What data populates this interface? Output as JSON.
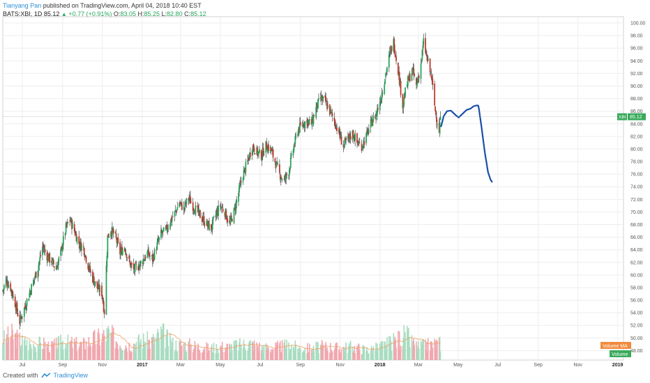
{
  "header": {
    "author": "Tianyang Pan",
    "published": "published on TradingView.com, April 04, 2018 10:40 EST",
    "symbol": "BATS:XBI, 1D",
    "price": "85.12",
    "change": "+0.77 (+0.91%)",
    "o_label": "O:",
    "o": "83.05",
    "h_label": "H:",
    "h": "85.25",
    "l_label": "L:",
    "l": "82.80",
    "c_label": "C:",
    "c": "85.12"
  },
  "footer": {
    "created": "Created with",
    "brand": "TradingView"
  },
  "colors": {
    "up": "#26a65b",
    "down": "#c0392b",
    "wick": "#444444",
    "forecast": "#1a4fa8",
    "volume_up": "#a8dcc0",
    "volume_down": "#f1a7ae",
    "volume_ma": "#f0a060",
    "grid": "#eeeeee"
  },
  "chart_data": {
    "type": "candlestick",
    "symbol": "XBI",
    "ylim": [
      46.5,
      101
    ],
    "y_ticks": [
      "100.00",
      "98.00",
      "96.00",
      "94.00",
      "92.00",
      "90.00",
      "88.00",
      "86.00",
      "84.00",
      "82.00",
      "80.00",
      "78.00",
      "76.00",
      "74.00",
      "72.00",
      "70.00",
      "68.00",
      "66.00",
      "64.00",
      "62.00",
      "60.00",
      "58.00",
      "56.00",
      "54.00",
      "52.00",
      "50.00",
      "48.00"
    ],
    "x_ticks": [
      "Jul",
      "Sep",
      "Nov",
      "2017",
      "Mar",
      "May",
      "Jul",
      "Sep",
      "Nov",
      "2018",
      "Mar",
      "May",
      "Jul",
      "Sep",
      "Nov",
      "2019"
    ],
    "x_tick_dates": [
      "2016-07-01",
      "2016-09-01",
      "2016-11-01",
      "2017-01-01",
      "2017-03-01",
      "2017-05-01",
      "2017-07-01",
      "2017-09-01",
      "2017-11-01",
      "2018-01-01",
      "2018-03-01",
      "2018-05-01",
      "2018-07-01",
      "2018-09-01",
      "2018-11-01",
      "2019-01-01"
    ],
    "x_range": [
      "2016-06-01",
      "2019-01-10"
    ],
    "last_price_label": "XBI",
    "last_price": 85.12,
    "price_path": [
      [
        "2016-06-01",
        57.5
      ],
      [
        "2016-06-06",
        59.2
      ],
      [
        "2016-06-13",
        58.0
      ],
      [
        "2016-06-20",
        55.5
      ],
      [
        "2016-06-27",
        52.6
      ],
      [
        "2016-07-05",
        55.0
      ],
      [
        "2016-07-11",
        56.8
      ],
      [
        "2016-07-18",
        59.0
      ],
      [
        "2016-07-25",
        61.2
      ],
      [
        "2016-08-01",
        64.5
      ],
      [
        "2016-08-08",
        63.0
      ],
      [
        "2016-08-15",
        62.2
      ],
      [
        "2016-08-22",
        61.0
      ],
      [
        "2016-08-29",
        63.5
      ],
      [
        "2016-09-06",
        67.5
      ],
      [
        "2016-09-12",
        68.8
      ],
      [
        "2016-09-19",
        67.0
      ],
      [
        "2016-09-26",
        65.0
      ],
      [
        "2016-10-03",
        64.3
      ],
      [
        "2016-10-10",
        61.5
      ],
      [
        "2016-10-17",
        59.5
      ],
      [
        "2016-10-24",
        58.0
      ],
      [
        "2016-10-31",
        57.2
      ],
      [
        "2016-11-04",
        54.2
      ],
      [
        "2016-11-09",
        66.0
      ],
      [
        "2016-11-14",
        67.3
      ],
      [
        "2016-11-21",
        66.0
      ],
      [
        "2016-11-28",
        63.5
      ],
      [
        "2016-12-05",
        64.5
      ],
      [
        "2016-12-12",
        62.0
      ],
      [
        "2016-12-19",
        60.8
      ],
      [
        "2016-12-27",
        61.5
      ],
      [
        "2017-01-03",
        62.5
      ],
      [
        "2017-01-09",
        63.5
      ],
      [
        "2017-01-17",
        62.5
      ],
      [
        "2017-01-23",
        64.5
      ],
      [
        "2017-01-30",
        66.5
      ],
      [
        "2017-02-06",
        67.0
      ],
      [
        "2017-02-13",
        68.5
      ],
      [
        "2017-02-21",
        70.0
      ],
      [
        "2017-02-27",
        71.5
      ],
      [
        "2017-03-06",
        70.5
      ],
      [
        "2017-03-13",
        72.3
      ],
      [
        "2017-03-20",
        71.0
      ],
      [
        "2017-03-27",
        70.0
      ],
      [
        "2017-04-03",
        69.0
      ],
      [
        "2017-04-10",
        68.0
      ],
      [
        "2017-04-17",
        67.5
      ],
      [
        "2017-04-24",
        69.5
      ],
      [
        "2017-05-01",
        71.0
      ],
      [
        "2017-05-08",
        70.0
      ],
      [
        "2017-05-15",
        68.0
      ],
      [
        "2017-05-22",
        70.0
      ],
      [
        "2017-05-30",
        73.5
      ],
      [
        "2017-06-05",
        76.0
      ],
      [
        "2017-06-12",
        78.0
      ],
      [
        "2017-06-19",
        80.5
      ],
      [
        "2017-06-26",
        79.5
      ],
      [
        "2017-07-03",
        79.0
      ],
      [
        "2017-07-10",
        80.5
      ],
      [
        "2017-07-17",
        80.0
      ],
      [
        "2017-07-24",
        78.0
      ],
      [
        "2017-07-31",
        76.0
      ],
      [
        "2017-08-07",
        75.0
      ],
      [
        "2017-08-14",
        76.5
      ],
      [
        "2017-08-21",
        80.0
      ],
      [
        "2017-08-28",
        83.0
      ],
      [
        "2017-09-05",
        84.0
      ],
      [
        "2017-09-11",
        84.5
      ],
      [
        "2017-09-18",
        84.0
      ],
      [
        "2017-09-25",
        86.5
      ],
      [
        "2017-10-02",
        88.0
      ],
      [
        "2017-10-09",
        87.5
      ],
      [
        "2017-10-16",
        86.0
      ],
      [
        "2017-10-23",
        84.5
      ],
      [
        "2017-10-30",
        82.5
      ],
      [
        "2017-11-06",
        80.5
      ],
      [
        "2017-11-13",
        81.5
      ],
      [
        "2017-11-20",
        82.5
      ],
      [
        "2017-11-27",
        81.0
      ],
      [
        "2017-12-04",
        80.5
      ],
      [
        "2017-12-11",
        82.0
      ],
      [
        "2017-12-18",
        84.0
      ],
      [
        "2017-12-26",
        85.5
      ],
      [
        "2018-01-02",
        88.0
      ],
      [
        "2018-01-08",
        91.0
      ],
      [
        "2018-01-16",
        95.0
      ],
      [
        "2018-01-22",
        97.0
      ],
      [
        "2018-01-29",
        92.5
      ],
      [
        "2018-02-05",
        87.0
      ],
      [
        "2018-02-12",
        90.5
      ],
      [
        "2018-02-20",
        92.5
      ],
      [
        "2018-02-26",
        90.0
      ],
      [
        "2018-03-05",
        93.5
      ],
      [
        "2018-03-09",
        97.0
      ],
      [
        "2018-03-15",
        94.0
      ],
      [
        "2018-03-21",
        91.5
      ],
      [
        "2018-03-27",
        86.0
      ],
      [
        "2018-04-02",
        83.0
      ],
      [
        "2018-04-04",
        85.12
      ]
    ],
    "volume": [
      [
        "2016-06-01",
        1.2
      ],
      [
        "2016-06-15",
        1.5
      ],
      [
        "2016-07-01",
        1.1
      ],
      [
        "2016-07-15",
        0.9
      ],
      [
        "2016-08-01",
        1.0
      ],
      [
        "2016-08-15",
        0.8
      ],
      [
        "2016-09-01",
        1.1
      ],
      [
        "2016-09-15",
        1.0
      ],
      [
        "2016-10-01",
        0.9
      ],
      [
        "2016-10-15",
        1.2
      ],
      [
        "2016-11-01",
        1.4
      ],
      [
        "2016-11-10",
        1.6
      ],
      [
        "2016-11-20",
        1.3
      ],
      [
        "2016-12-01",
        1.0
      ],
      [
        "2016-12-15",
        0.9
      ],
      [
        "2017-01-01",
        1.2
      ],
      [
        "2017-01-15",
        1.1
      ],
      [
        "2017-02-01",
        1.6
      ],
      [
        "2017-02-15",
        1.0
      ],
      [
        "2017-03-01",
        0.9
      ],
      [
        "2017-03-15",
        0.9
      ],
      [
        "2017-04-01",
        0.8
      ],
      [
        "2017-04-15",
        0.7
      ],
      [
        "2017-05-01",
        0.8
      ],
      [
        "2017-05-15",
        0.8
      ],
      [
        "2017-06-01",
        0.9
      ],
      [
        "2017-06-15",
        1.0
      ],
      [
        "2017-07-01",
        0.8
      ],
      [
        "2017-07-15",
        0.7
      ],
      [
        "2017-08-01",
        0.8
      ],
      [
        "2017-08-15",
        0.9
      ],
      [
        "2017-09-01",
        0.7
      ],
      [
        "2017-09-15",
        0.7
      ],
      [
        "2017-10-01",
        0.8
      ],
      [
        "2017-10-15",
        0.8
      ],
      [
        "2017-11-01",
        0.7
      ],
      [
        "2017-11-15",
        0.8
      ],
      [
        "2017-12-01",
        0.7
      ],
      [
        "2017-12-15",
        0.6
      ],
      [
        "2018-01-01",
        0.8
      ],
      [
        "2018-01-15",
        1.0
      ],
      [
        "2018-02-01",
        1.3
      ],
      [
        "2018-02-10",
        1.5
      ],
      [
        "2018-02-20",
        1.0
      ],
      [
        "2018-03-01",
        0.8
      ],
      [
        "2018-03-15",
        0.9
      ],
      [
        "2018-04-01",
        1.0
      ]
    ],
    "volume_max": 2.5,
    "forecast_path": [
      [
        "2018-04-05",
        83.6
      ],
      [
        "2018-04-09",
        85.2
      ],
      [
        "2018-04-14",
        86.0
      ],
      [
        "2018-04-20",
        86.1
      ],
      [
        "2018-04-27",
        85.4
      ],
      [
        "2018-05-02",
        85.0
      ],
      [
        "2018-05-08",
        85.6
      ],
      [
        "2018-05-14",
        86.2
      ],
      [
        "2018-05-20",
        86.4
      ],
      [
        "2018-05-25",
        86.8
      ],
      [
        "2018-05-29",
        86.9
      ],
      [
        "2018-06-01",
        86.9
      ],
      [
        "2018-06-02",
        86.4
      ],
      [
        "2018-06-06",
        83.5
      ],
      [
        "2018-06-11",
        79.5
      ],
      [
        "2018-06-16",
        76.3
      ],
      [
        "2018-06-20",
        75.1
      ],
      [
        "2018-06-22",
        74.8
      ]
    ],
    "legend_volume_ma": "Volume MA",
    "legend_volume": "Volume"
  }
}
